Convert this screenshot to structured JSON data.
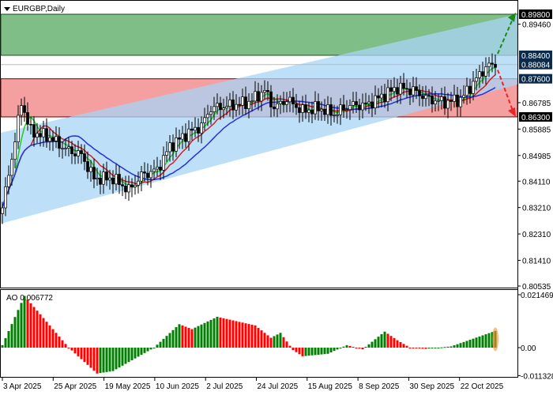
{
  "header": {
    "symbol_label": "EURGBP,Daily",
    "menu_icon": "triangle-down-icon"
  },
  "chart_data": {
    "type": "candlestick",
    "symbol": "EURGBP",
    "timeframe": "Daily",
    "ylim": [
      0.80535,
      0.898
    ],
    "price_ticks": [
      "0.89460",
      "0.86785",
      "0.85885",
      "0.84985",
      "0.84110",
      "0.83210",
      "0.82310",
      "0.81410",
      "0.80535"
    ],
    "price_markers": [
      {
        "label": "0.89800",
        "value": 0.898,
        "bg": "#000000"
      },
      {
        "label": "0.88400",
        "value": 0.884,
        "bg": "#0b2a4a"
      },
      {
        "label": "0.88084",
        "value": 0.88084,
        "bg": "#0b2a4a"
      },
      {
        "label": "0.87600",
        "value": 0.876,
        "bg": "#0b2a4a"
      },
      {
        "label": "0.86300",
        "value": 0.863,
        "bg": "#000000"
      }
    ],
    "date_ticks": [
      "3 Apr 2025",
      "25 Apr 2025",
      "19 May 2025",
      "10 Jun 2025",
      "2 Jul 2025",
      "24 Jul 2025",
      "15 Aug 2025",
      "8 Sep 2025",
      "30 Sep 2025",
      "22 Oct 2025"
    ],
    "close_series": [
      [
        "2025-04-03",
        0.832
      ],
      [
        "2025-04-09",
        0.855
      ],
      [
        "2025-04-11",
        0.868
      ],
      [
        "2025-04-16",
        0.858
      ],
      [
        "2025-04-24",
        0.856
      ],
      [
        "2025-05-01",
        0.852
      ],
      [
        "2025-05-08",
        0.85
      ],
      [
        "2025-05-14",
        0.842
      ],
      [
        "2025-05-22",
        0.842
      ],
      [
        "2025-05-29",
        0.838
      ],
      [
        "2025-06-04",
        0.843
      ],
      [
        "2025-06-11",
        0.845
      ],
      [
        "2025-06-17",
        0.853
      ],
      [
        "2025-06-24",
        0.857
      ],
      [
        "2025-07-01",
        0.86
      ],
      [
        "2025-07-04",
        0.866
      ],
      [
        "2025-07-15",
        0.867
      ],
      [
        "2025-07-22",
        0.868
      ],
      [
        "2025-07-29",
        0.872
      ],
      [
        "2025-08-01",
        0.866
      ],
      [
        "2025-08-07",
        0.869
      ],
      [
        "2025-08-14",
        0.865
      ],
      [
        "2025-08-21",
        0.866
      ],
      [
        "2025-08-28",
        0.864
      ],
      [
        "2025-09-04",
        0.867
      ],
      [
        "2025-09-11",
        0.867
      ],
      [
        "2025-09-18",
        0.87
      ],
      [
        "2025-09-25",
        0.873
      ],
      [
        "2025-10-02",
        0.872
      ],
      [
        "2025-10-09",
        0.869
      ],
      [
        "2025-10-16",
        0.868
      ],
      [
        "2025-10-23",
        0.869
      ],
      [
        "2025-10-30",
        0.876
      ],
      [
        "2025-11-04",
        0.88
      ],
      [
        "2025-11-07",
        0.881
      ]
    ],
    "zones": [
      {
        "name": "target-zone",
        "from": 0.884,
        "to": 0.898,
        "color": "#7fbf87"
      },
      {
        "name": "support-zone",
        "from": 0.863,
        "to": 0.876,
        "color": "#f4a0a0"
      }
    ],
    "moving_average_colors": [
      "#22cc22",
      "#cc2222",
      "#2233dd"
    ],
    "channel_color": "#a8d4f5",
    "forecast_arrows": [
      {
        "direction": "up",
        "target": 0.898,
        "color": "#1a8a1a"
      },
      {
        "direction": "down",
        "target": 0.863,
        "color": "#ee2222"
      }
    ],
    "indicator": {
      "name": "AO",
      "label": "AO 0.006772",
      "ticks": [
        "0.021469",
        "0.00",
        "-0.011328"
      ],
      "range": [
        -0.011328,
        0.021469
      ],
      "up_color": "#008000",
      "down_color": "#ff0000",
      "series": [
        [
          "2025-04-03",
          0.001
        ],
        [
          "2025-04-14",
          0.021
        ],
        [
          "2025-05-02",
          0.0
        ],
        [
          "2025-05-15",
          -0.0105
        ],
        [
          "2025-05-22",
          -0.0095
        ],
        [
          "2025-06-10",
          0.0
        ],
        [
          "2025-06-20",
          0.0095
        ],
        [
          "2025-06-26",
          0.0075
        ],
        [
          "2025-07-08",
          0.0125
        ],
        [
          "2025-07-24",
          0.009
        ],
        [
          "2025-07-31",
          0.004
        ],
        [
          "2025-08-05",
          0.006
        ],
        [
          "2025-08-11",
          -0.001
        ],
        [
          "2025-08-14",
          -0.0035
        ],
        [
          "2025-08-26",
          -0.0025
        ],
        [
          "2025-09-03",
          0.001
        ],
        [
          "2025-09-10",
          -0.0007
        ],
        [
          "2025-09-19",
          0.0065
        ],
        [
          "2025-09-25",
          0.003
        ],
        [
          "2025-10-01",
          0.0
        ],
        [
          "2025-10-08",
          -0.0005
        ],
        [
          "2025-10-20",
          0.0005
        ],
        [
          "2025-11-07",
          0.006772
        ]
      ]
    }
  }
}
